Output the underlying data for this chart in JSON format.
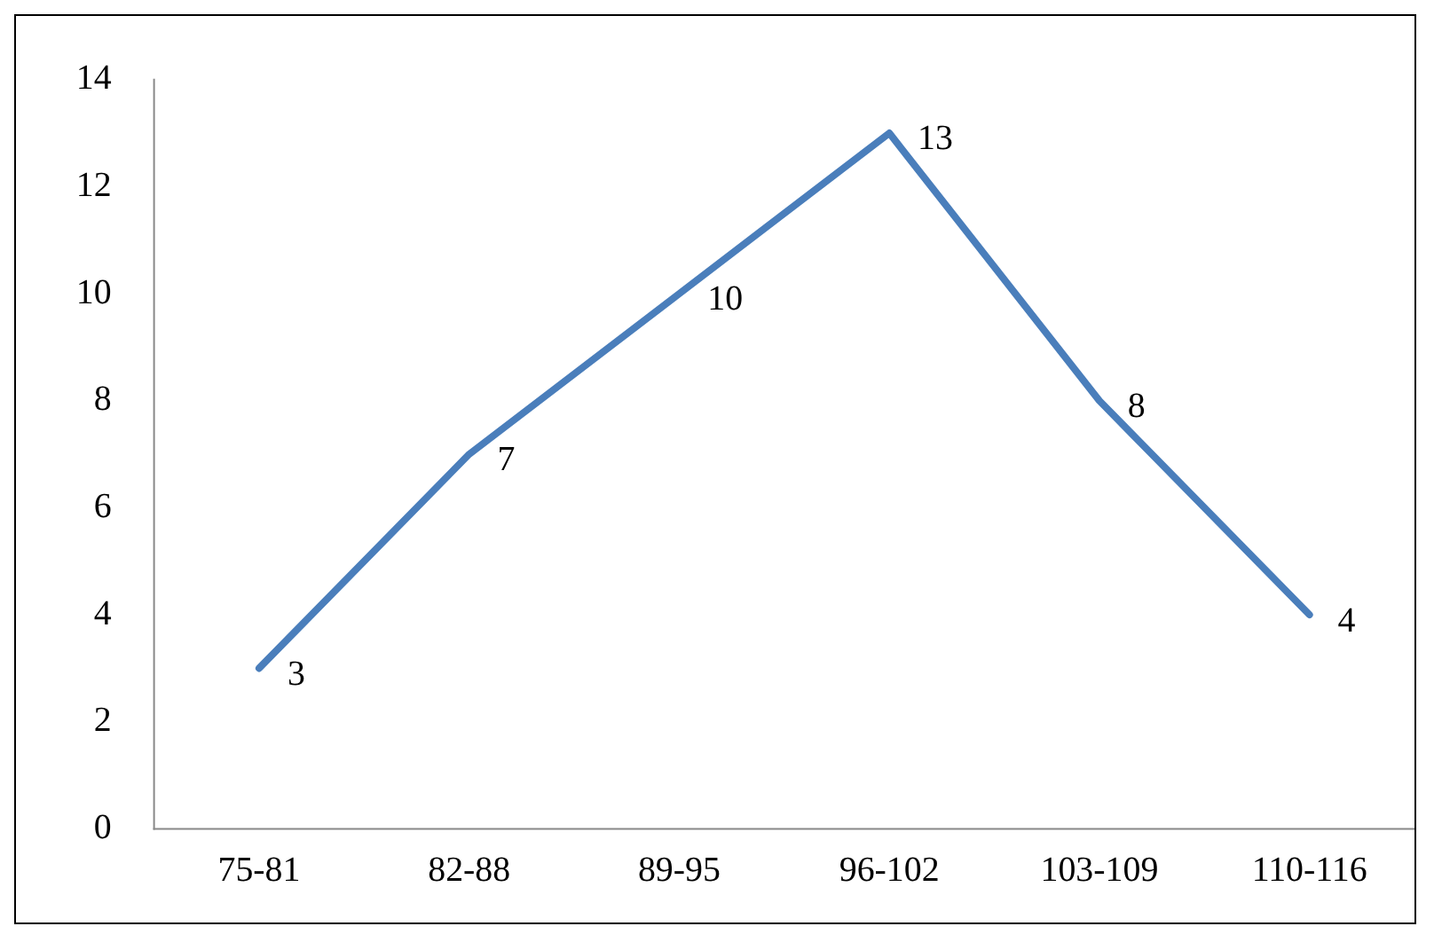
{
  "chart_data": {
    "type": "line",
    "categories": [
      "75-81",
      "82-88",
      "89-95",
      "96-102",
      "103-109",
      "110-116"
    ],
    "values": [
      3,
      7,
      10,
      13,
      8,
      4
    ],
    "color": "#4a7ebb",
    "ylim": [
      0,
      14
    ],
    "yticks": [
      0,
      2,
      4,
      6,
      8,
      10,
      12,
      14
    ],
    "grid": false,
    "legend": false,
    "marker": "none",
    "line_style": "solid",
    "data_labels": true
  }
}
